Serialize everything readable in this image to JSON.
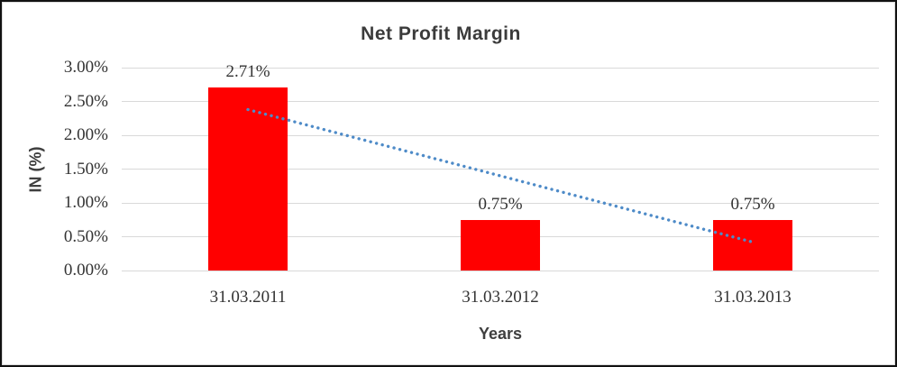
{
  "chart_data": {
    "type": "bar",
    "title": "Net Profit Margin",
    "xlabel": "Years",
    "ylabel": "IN (%)",
    "categories": [
      "31.03.2011",
      "31.03.2012",
      "31.03.2013"
    ],
    "values": [
      2.71,
      0.75,
      0.75
    ],
    "data_labels": [
      "2.71%",
      "0.75%",
      "0.75%"
    ],
    "ylim": [
      0,
      3
    ],
    "ytick_step": 0.5,
    "ytick_labels": [
      "3.00%",
      "2.50%",
      "2.00%",
      "1.50%",
      "1.00%",
      "0.50%",
      "0.00%"
    ],
    "grid": true,
    "legend": "none",
    "trendline": {
      "shape": "linear",
      "style": "dotted",
      "start_value": 2.38,
      "end_value": 0.42
    },
    "colors": {
      "bar": "#FF0000",
      "gridline": "#D9D9D9",
      "trendline": "#4E8BC8",
      "title_text": "#3B3B3B",
      "tick_text": "#333333"
    }
  }
}
